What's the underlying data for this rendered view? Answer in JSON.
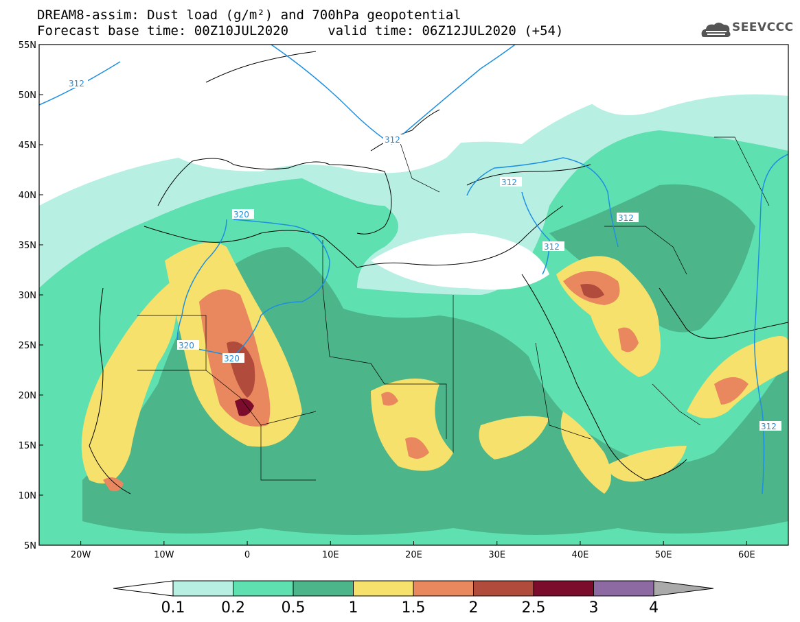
{
  "title": {
    "line1": "DREAM8-assim: Dust load (g/m²) and 700hPa geopotential",
    "line2": "Forecast base time: 00Z10JUL2020     valid time: 06Z12JUL2020 (+54)"
  },
  "logo": {
    "text": "SEEVCCC",
    "icon": "cloud-logo-icon"
  },
  "map": {
    "lon_range": [
      -25,
      65
    ],
    "lat_range": [
      5,
      55
    ],
    "lon_ticks": [
      "20W",
      "10W",
      "0",
      "10E",
      "20E",
      "30E",
      "40E",
      "50E",
      "60E"
    ],
    "lat_ticks": [
      "55N",
      "50N",
      "45N",
      "40N",
      "35N",
      "30N",
      "25N",
      "20N",
      "15N",
      "10N",
      "5N"
    ],
    "contours": [
      {
        "label": "312"
      },
      {
        "label": "312"
      },
      {
        "label": "312"
      },
      {
        "label": "312"
      },
      {
        "label": "312"
      },
      {
        "label": "320"
      },
      {
        "label": "320"
      },
      {
        "label": "320"
      }
    ]
  },
  "colorbar": {
    "levels": [
      "0.1",
      "0.2",
      "0.5",
      "1",
      "1.5",
      "2",
      "2.5",
      "3",
      "4"
    ],
    "colors": [
      "#b7f0e3",
      "#5ee0b0",
      "#4cb58a",
      "#f5e16b",
      "#e9885e",
      "#b14c3c",
      "#7b0c2b",
      "#8e6aa3",
      "#aaaaaa"
    ]
  }
}
